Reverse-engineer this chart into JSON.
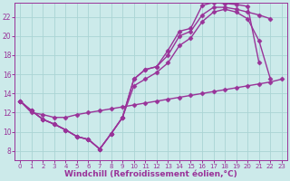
{
  "background_color": "#cceaea",
  "grid_color": "#aad4d4",
  "line_color": "#993399",
  "marker": "D",
  "markersize": 2.5,
  "linewidth": 1.0,
  "xlabel": "Windchill (Refroidissement éolien,°C)",
  "xlabel_fontsize": 6.5,
  "xtick_fontsize": 5.0,
  "ytick_fontsize": 5.5,
  "ylim": [
    7,
    23.5
  ],
  "xlim": [
    -0.5,
    23.5
  ],
  "yticks": [
    8,
    10,
    12,
    14,
    16,
    18,
    20,
    22
  ],
  "xticks": [
    0,
    1,
    2,
    3,
    4,
    5,
    6,
    7,
    8,
    9,
    10,
    11,
    12,
    13,
    14,
    15,
    16,
    17,
    18,
    19,
    20,
    21,
    22,
    23
  ],
  "series": [
    {
      "x": [
        0,
        1,
        2,
        3,
        4,
        5,
        6,
        7,
        8,
        9,
        10,
        11,
        12,
        13,
        14,
        15,
        16,
        17,
        18,
        19,
        20,
        21
      ],
      "y": [
        13.2,
        12.2,
        11.3,
        10.8,
        10.2,
        9.5,
        9.2,
        8.2,
        9.8,
        11.5,
        15.5,
        16.5,
        16.8,
        18.5,
        20.5,
        20.8,
        23.2,
        23.5,
        23.4,
        23.3,
        23.1,
        17.2
      ]
    },
    {
      "x": [
        0,
        1,
        2,
        3,
        4,
        5,
        6,
        7,
        8,
        9,
        10,
        11,
        12,
        13,
        14,
        15,
        16,
        17,
        18,
        19,
        20,
        21,
        22
      ],
      "y": [
        13.2,
        12.2,
        11.3,
        10.8,
        10.2,
        9.5,
        9.2,
        8.2,
        9.8,
        11.5,
        15.5,
        16.5,
        16.8,
        18.0,
        20.0,
        20.5,
        22.2,
        23.0,
        23.0,
        22.8,
        22.5,
        22.2,
        21.8
      ]
    },
    {
      "x": [
        0,
        1,
        2,
        3,
        4,
        5,
        6,
        7,
        8,
        9,
        10,
        11,
        12,
        13,
        14,
        15,
        16,
        17,
        18,
        19,
        20,
        21,
        22
      ],
      "y": [
        13.2,
        12.2,
        11.3,
        10.8,
        10.2,
        9.5,
        9.2,
        8.2,
        9.8,
        11.5,
        14.8,
        15.5,
        16.2,
        17.2,
        19.0,
        19.8,
        21.5,
        22.5,
        22.8,
        22.5,
        21.8,
        19.5,
        15.5
      ]
    },
    {
      "x": [
        0,
        1,
        2,
        3,
        4,
        5,
        6,
        7,
        8,
        9,
        10,
        11,
        12,
        13,
        14,
        15,
        16,
        17,
        18,
        19,
        20,
        21,
        22,
        23
      ],
      "y": [
        13.2,
        12.0,
        11.8,
        11.5,
        11.5,
        11.8,
        12.0,
        12.2,
        12.4,
        12.6,
        12.8,
        13.0,
        13.2,
        13.4,
        13.6,
        13.8,
        14.0,
        14.2,
        14.4,
        14.6,
        14.8,
        15.0,
        15.2,
        15.5
      ]
    }
  ]
}
